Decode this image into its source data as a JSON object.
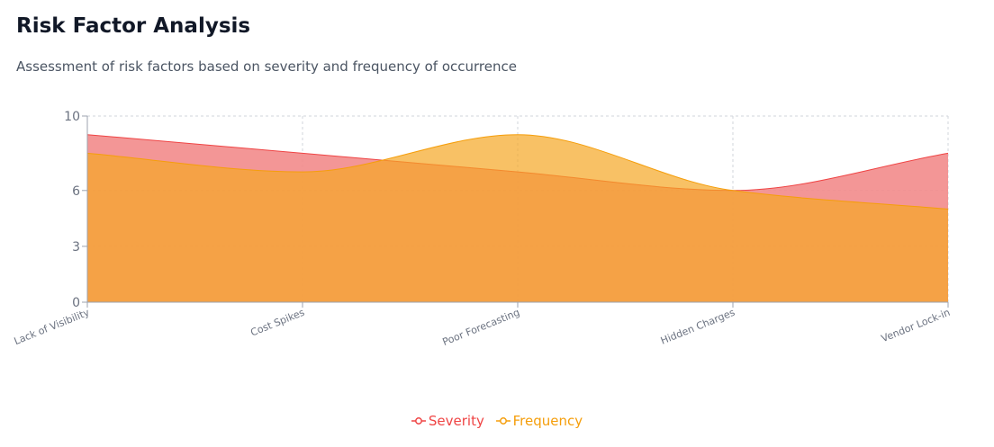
{
  "page": {
    "title": "Risk Factor Analysis",
    "subtitle": "Assessment of risk factors based on severity and frequency of occurrence"
  },
  "chart_data": {
    "type": "area",
    "categories": [
      "Lack of Visibility",
      "Cost Spikes",
      "Poor Forecasting",
      "Hidden Charges",
      "Vendor Lock-in"
    ],
    "series": [
      {
        "name": "Severity",
        "values": [
          9,
          8,
          7,
          6,
          8
        ],
        "color": "#ef4444",
        "fill": "#f28b8b"
      },
      {
        "name": "Frequency",
        "values": [
          8,
          7,
          9,
          6,
          5
        ],
        "color": "#f59e0b",
        "fill": "#f5a623"
      }
    ],
    "yticks": [
      0,
      3,
      6,
      10
    ],
    "ylim": [
      0,
      10
    ],
    "grid": true,
    "legend": "bottom-center"
  }
}
